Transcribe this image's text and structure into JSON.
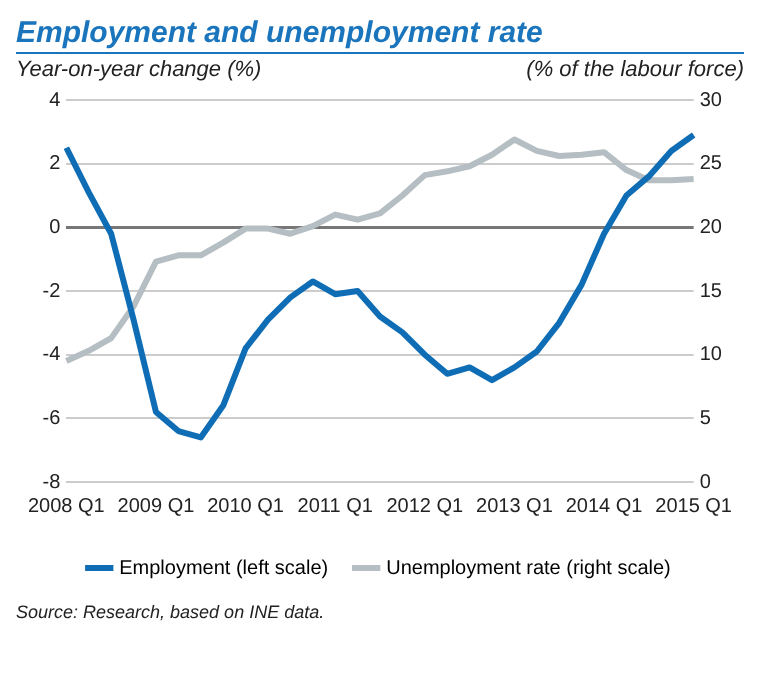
{
  "chart_data": {
    "type": "line",
    "title": "Employment and unemployment rate",
    "ylabel": "Year-on-year change (%)",
    "y2label": "(% of the labour force)",
    "categories": [
      "2008 Q1",
      null,
      null,
      null,
      "2009 Q1",
      null,
      null,
      null,
      "2010 Q1",
      null,
      null,
      null,
      "2011 Q1",
      null,
      null,
      null,
      "2012 Q1",
      null,
      null,
      null,
      "2013 Q1",
      null,
      null,
      null,
      "2014 Q1",
      null,
      null,
      null,
      "2015 Q1"
    ],
    "series": [
      {
        "name": "Employment (left scale)",
        "color": "#0f6db5",
        "values": [
          2.5,
          1.1,
          -0.2,
          -2.9,
          -5.8,
          -6.4,
          -6.6,
          -5.6,
          -3.8,
          -2.9,
          -2.2,
          -1.7,
          -2.1,
          -2.0,
          -2.8,
          -3.3,
          -4.0,
          -4.6,
          -4.4,
          -4.8,
          -4.4,
          -3.9,
          -3.0,
          -1.8,
          -0.2,
          1.0,
          1.6,
          2.4,
          2.9
        ]
      },
      {
        "name": "Unemployment rate (right scale)",
        "color": "#b4bec3",
        "axis": "y2",
        "values": [
          9.5,
          10.3,
          11.3,
          13.8,
          17.3,
          17.8,
          17.8,
          18.8,
          19.9,
          19.9,
          19.5,
          20.1,
          21.0,
          20.6,
          21.1,
          22.5,
          24.1,
          24.4,
          24.8,
          25.7,
          26.9,
          26.0,
          25.6,
          25.7,
          25.9,
          24.5,
          23.7,
          23.7,
          23.8
        ]
      }
    ],
    "ylim": [
      -8,
      4
    ],
    "yticks": [
      -8,
      -6,
      -4,
      -2,
      0,
      2,
      4
    ],
    "y2lim": [
      0,
      30
    ],
    "y2ticks": [
      0,
      5,
      10,
      15,
      20,
      25,
      30
    ],
    "grid": "y",
    "legend": "bottom",
    "marker": "none",
    "line_style": "solid",
    "annotations": [
      "Source: Research, based on INE data."
    ]
  }
}
